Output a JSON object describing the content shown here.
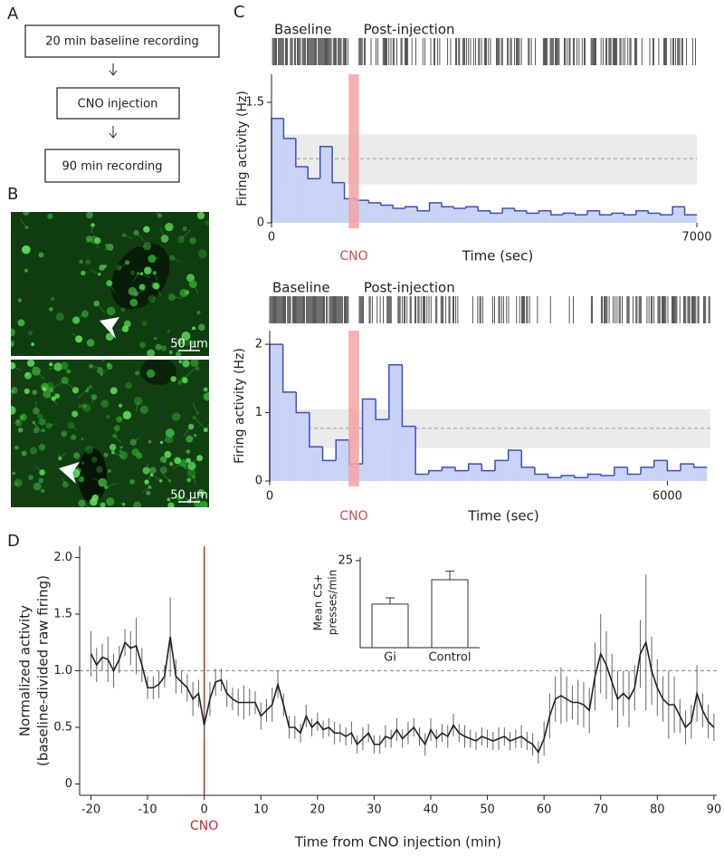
{
  "panel_labels": [
    "A",
    "B",
    "C",
    "D"
  ],
  "flow": {
    "steps": [
      "20 min baseline recording",
      "CNO injection",
      "90 min recording"
    ]
  },
  "micrographs": {
    "scale_labels": [
      "50 μm",
      "50 μm"
    ]
  },
  "chart_data": [
    {
      "type": "histogram",
      "ylabel": "Firing activity (Hz)",
      "xlabel": "Time (sec)",
      "raster_labels": [
        "Baseline",
        "Post-injection"
      ],
      "bins": [
        0,
        200,
        400,
        600,
        800,
        1000,
        1200,
        1400,
        1600,
        1800,
        2000,
        2200,
        2400,
        2600,
        2800,
        3000,
        3200,
        3400,
        3600,
        3800,
        4000,
        4200,
        4400,
        4600,
        4800,
        5000,
        5200,
        5400,
        5600,
        5800,
        6000,
        6200,
        6400,
        6600,
        6800,
        7000
      ],
      "values": [
        1.3,
        1.05,
        0.7,
        0.55,
        0.95,
        0.5,
        0.3,
        0.28,
        0.25,
        0.22,
        0.18,
        0.2,
        0.15,
        0.25,
        0.2,
        0.18,
        0.2,
        0.15,
        0.12,
        0.18,
        0.15,
        0.12,
        0.15,
        0.1,
        0.12,
        0.1,
        0.15,
        0.1,
        0.12,
        0.1,
        0.15,
        0.12,
        0.1,
        0.2,
        0.1
      ],
      "color": "#3d4fbf",
      "fill": "#c8d3f6",
      "xlim": [
        0,
        7000
      ],
      "ylim": [
        0,
        1.85
      ],
      "xticks": [
        0,
        7000
      ],
      "yticks": [
        0,
        1.5
      ],
      "highlight": {
        "label": "CNO",
        "xrange": [
          1270,
          1440
        ],
        "color": "#f2a3a3"
      },
      "reference_band": {
        "range": [
          0.48,
          1.1
        ],
        "line": 0.8,
        "color": "#ebebeb"
      }
    },
    {
      "type": "histogram",
      "ylabel": "Firing activity (Hz)",
      "xlabel": "Time (sec)",
      "raster_labels": [
        "Baseline",
        "Post-injection"
      ],
      "bins": [
        0,
        200,
        400,
        600,
        800,
        1000,
        1200,
        1400,
        1600,
        1800,
        2000,
        2200,
        2400,
        2600,
        2800,
        3000,
        3200,
        3400,
        3600,
        3800,
        4000,
        4200,
        4400,
        4600,
        4800,
        5000,
        5200,
        5400,
        5600,
        5800,
        6000,
        6200,
        6400,
        6600
      ],
      "values": [
        2.0,
        1.3,
        1.0,
        0.5,
        0.3,
        0.6,
        0.25,
        1.2,
        0.9,
        1.7,
        0.8,
        0.1,
        0.15,
        0.2,
        0.15,
        0.25,
        0.15,
        0.3,
        0.45,
        0.2,
        0.1,
        0.05,
        0.08,
        0.05,
        0.1,
        0.08,
        0.2,
        0.1,
        0.2,
        0.3,
        0.15,
        0.25,
        0.2
      ],
      "color": "#3d4fbf",
      "fill": "#c8d3f6",
      "xlim": [
        0,
        6650
      ],
      "ylim": [
        0,
        2.2
      ],
      "xticks": [
        0,
        6000
      ],
      "yticks": [
        0,
        1,
        2
      ],
      "highlight": {
        "label": "CNO",
        "xrange": [
          1190,
          1350
        ],
        "color": "#f2a3a3"
      },
      "reference_band": {
        "range": [
          0.48,
          1.05
        ],
        "line": 0.77,
        "color": "#ebebeb"
      }
    },
    {
      "type": "line",
      "ylabel": [
        "Normalized activity",
        "(baseline-divided raw firing)"
      ],
      "xlabel": "Time from CNO injection (min)",
      "x": [
        -20,
        -19,
        -18,
        -17,
        -16,
        -15,
        -14,
        -13,
        -12,
        -11,
        -10,
        -9,
        -8,
        -7,
        -6,
        -5,
        -4,
        -3,
        -2,
        -1,
        0,
        1,
        2,
        3,
        4,
        5,
        6,
        7,
        8,
        9,
        10,
        11,
        12,
        13,
        14,
        15,
        16,
        17,
        18,
        19,
        20,
        21,
        22,
        23,
        24,
        25,
        26,
        27,
        28,
        29,
        30,
        31,
        32,
        33,
        34,
        35,
        36,
        37,
        38,
        39,
        40,
        41,
        42,
        43,
        44,
        45,
        46,
        47,
        48,
        49,
        50,
        51,
        52,
        53,
        54,
        55,
        56,
        57,
        58,
        59,
        60,
        61,
        62,
        63,
        64,
        65,
        66,
        67,
        68,
        69,
        70,
        71,
        72,
        73,
        74,
        75,
        76,
        77,
        78,
        79,
        80,
        81,
        82,
        83,
        84,
        85,
        86,
        87,
        88,
        89,
        90
      ],
      "values": [
        1.15,
        1.05,
        1.12,
        1.1,
        1.0,
        1.1,
        1.25,
        1.2,
        1.22,
        1.05,
        0.85,
        0.85,
        0.88,
        0.95,
        1.3,
        0.95,
        0.9,
        0.85,
        0.75,
        0.8,
        0.52,
        0.75,
        0.9,
        0.92,
        0.8,
        0.75,
        0.72,
        0.72,
        0.72,
        0.72,
        0.6,
        0.65,
        0.7,
        0.88,
        0.7,
        0.5,
        0.5,
        0.45,
        0.6,
        0.5,
        0.55,
        0.48,
        0.5,
        0.45,
        0.45,
        0.42,
        0.45,
        0.35,
        0.4,
        0.45,
        0.35,
        0.35,
        0.42,
        0.4,
        0.48,
        0.4,
        0.45,
        0.5,
        0.42,
        0.35,
        0.48,
        0.4,
        0.45,
        0.42,
        0.52,
        0.45,
        0.42,
        0.4,
        0.38,
        0.42,
        0.4,
        0.38,
        0.4,
        0.42,
        0.38,
        0.4,
        0.42,
        0.38,
        0.35,
        0.28,
        0.4,
        0.6,
        0.75,
        0.78,
        0.75,
        0.72,
        0.72,
        0.7,
        0.65,
        0.95,
        1.15,
        1.05,
        0.9,
        0.75,
        0.8,
        0.75,
        0.85,
        1.15,
        1.25,
        1.0,
        0.85,
        0.75,
        0.7,
        0.7,
        0.6,
        0.5,
        0.55,
        0.8,
        0.65,
        0.55,
        0.5
      ],
      "errors": [
        0.2,
        0.15,
        0.12,
        0.2,
        0.15,
        0.12,
        0.12,
        0.15,
        0.25,
        0.15,
        0.1,
        0.1,
        0.12,
        0.1,
        0.35,
        0.15,
        0.1,
        0.12,
        0.15,
        0.12,
        0.12,
        0.15,
        0.12,
        0.1,
        0.12,
        0.1,
        0.12,
        0.15,
        0.12,
        0.1,
        0.12,
        0.1,
        0.15,
        0.12,
        0.1,
        0.1,
        0.1,
        0.08,
        0.1,
        0.08,
        0.08,
        0.08,
        0.08,
        0.1,
        0.08,
        0.08,
        0.1,
        0.08,
        0.1,
        0.08,
        0.08,
        0.08,
        0.1,
        0.08,
        0.1,
        0.08,
        0.1,
        0.08,
        0.08,
        0.1,
        0.1,
        0.08,
        0.08,
        0.1,
        0.1,
        0.08,
        0.1,
        0.08,
        0.08,
        0.08,
        0.08,
        0.08,
        0.1,
        0.08,
        0.08,
        0.08,
        0.1,
        0.08,
        0.1,
        0.1,
        0.15,
        0.2,
        0.2,
        0.25,
        0.2,
        0.15,
        0.2,
        0.2,
        0.2,
        0.3,
        0.35,
        0.3,
        0.25,
        0.25,
        0.2,
        0.25,
        0.2,
        0.3,
        0.6,
        0.3,
        0.25,
        0.2,
        0.3,
        0.25,
        0.15,
        0.15,
        0.15,
        0.25,
        0.15,
        0.15,
        0.12
      ],
      "color": "#222222",
      "error_color": "#666666",
      "xlim": [
        -22,
        90.5
      ],
      "ylim": [
        -0.1,
        2.1
      ],
      "xticks": [
        -20,
        -10,
        0,
        10,
        20,
        30,
        40,
        50,
        60,
        70,
        80,
        90
      ],
      "yticks": [
        0,
        0.5,
        {
          "value": 1,
          "label": "1.0"
        },
        1.5,
        {
          "value": 2,
          "label": "2.0"
        }
      ],
      "reference_line": 1,
      "event": {
        "label": "CNO",
        "x": 0,
        "color": "#d62828"
      }
    },
    {
      "type": "bar",
      "ylabel": [
        "Mean CS+",
        "presses/min"
      ],
      "categories": [
        "Gi",
        "Control"
      ],
      "values": [
        12.5,
        19.5
      ],
      "errors": [
        1.8,
        2.5
      ],
      "color": "#ffffff",
      "ylim": [
        0,
        26
      ],
      "yticks": [
        25
      ]
    }
  ]
}
